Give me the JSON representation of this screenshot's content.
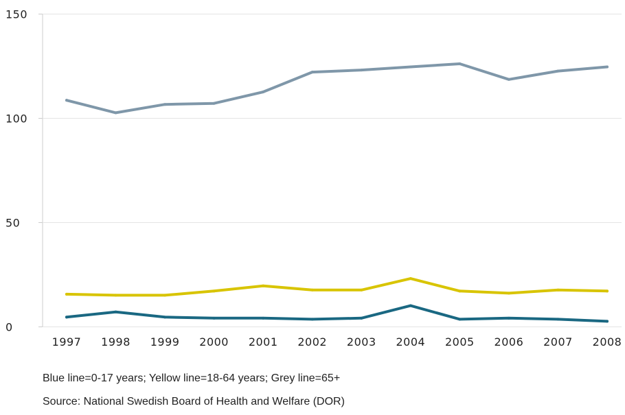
{
  "chart_data": {
    "type": "line",
    "title": "",
    "xlabel": "",
    "ylabel": "",
    "categories": [
      "1997",
      "1998",
      "1999",
      "2000",
      "2001",
      "2002",
      "2003",
      "2004",
      "2005",
      "2006",
      "2007",
      "2008"
    ],
    "ylim": [
      0,
      150
    ],
    "yticks": [
      0,
      50,
      100,
      150
    ],
    "grid": true,
    "legend": "none",
    "series": [
      {
        "color": "#7f97a9",
        "values": [
          108.5,
          102.5,
          106.5,
          107,
          112.5,
          122,
          123,
          124.5,
          126,
          118.5,
          122.5,
          124.5
        ]
      },
      {
        "color": "#d8c400",
        "values": [
          15.5,
          15,
          15,
          17,
          19.5,
          17.5,
          17.5,
          23,
          17,
          16,
          17.5,
          17
        ]
      },
      {
        "color": "#1a6882",
        "values": [
          4.5,
          7,
          4.5,
          4,
          4,
          3.5,
          4,
          10,
          3.5,
          4,
          3.5,
          2.5
        ]
      }
    ]
  },
  "notes": {
    "caption": "Blue line=0-17 years; Yellow line=18-64 years; Grey line=65+",
    "source": "Source: National Swedish Board of Health and Welfare (DOR)"
  },
  "colors": {
    "grid": "#e4e4e4",
    "axis": "#cccccc",
    "text": "#222222"
  }
}
